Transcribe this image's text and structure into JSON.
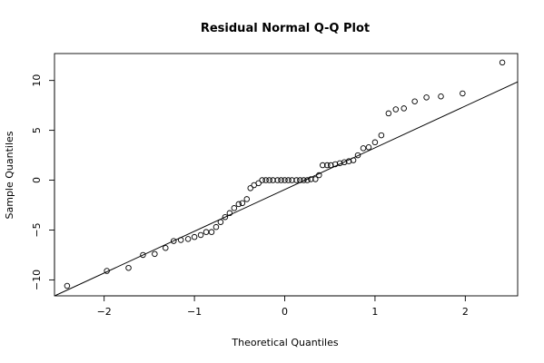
{
  "chart_data": {
    "type": "scatter",
    "title": "Residual Normal Q-Q Plot",
    "xlabel": "Theoretical Quantiles",
    "ylabel": "Sample Quantiles",
    "xlim": [
      -2.55,
      2.58
    ],
    "ylim": [
      -11.6,
      12.7
    ],
    "xticks": [
      -2,
      -1,
      0,
      1,
      2
    ],
    "yticks": [
      -10,
      -5,
      0,
      5,
      10
    ],
    "xtick_labels": [
      "−2",
      "−1",
      "0",
      "1",
      "2"
    ],
    "ytick_labels": [
      "−10",
      "−5",
      "0",
      "5",
      "10"
    ],
    "grid": false,
    "reference_line": {
      "x": [
        -2.55,
        2.58
      ],
      "y": [
        -11.61,
        9.86
      ]
    },
    "points": {
      "x": [
        -2.41,
        -1.97,
        -1.73,
        -1.57,
        -1.44,
        -1.32,
        -1.23,
        -1.15,
        -1.07,
        -1.0,
        -0.93,
        -0.87,
        -0.81,
        -0.76,
        -0.71,
        -0.66,
        -0.61,
        -0.56,
        -0.51,
        -0.47,
        -0.42,
        -0.38,
        -0.34,
        -0.29,
        -0.25,
        -0.21,
        -0.17,
        -0.13,
        -0.08,
        -0.04,
        0.0,
        0.04,
        0.08,
        0.13,
        0.17,
        0.21,
        0.25,
        0.29,
        0.34,
        0.38,
        0.42,
        0.47,
        0.51,
        0.56,
        0.61,
        0.66,
        0.71,
        0.76,
        0.81,
        0.87,
        0.93,
        1.0,
        1.07,
        1.15,
        1.23,
        1.32,
        1.44,
        1.57,
        1.73,
        1.97,
        2.41
      ],
      "y": [
        -10.6,
        -9.1,
        -8.8,
        -7.5,
        -7.4,
        -6.8,
        -6.1,
        -6.0,
        -5.9,
        -5.7,
        -5.5,
        -5.2,
        -5.2,
        -4.7,
        -4.2,
        -3.7,
        -3.3,
        -2.8,
        -2.4,
        -2.3,
        -1.9,
        -0.8,
        -0.5,
        -0.3,
        0.0,
        0.0,
        0.0,
        0.0,
        0.0,
        0.0,
        0.0,
        0.0,
        0.0,
        0.0,
        0.0,
        0.0,
        0.0,
        0.1,
        0.1,
        0.5,
        1.5,
        1.5,
        1.5,
        1.6,
        1.7,
        1.8,
        1.9,
        2.0,
        2.5,
        3.2,
        3.3,
        3.8,
        4.5,
        6.7,
        7.1,
        7.2,
        7.9,
        8.3,
        8.4,
        8.7,
        11.8
      ]
    }
  }
}
